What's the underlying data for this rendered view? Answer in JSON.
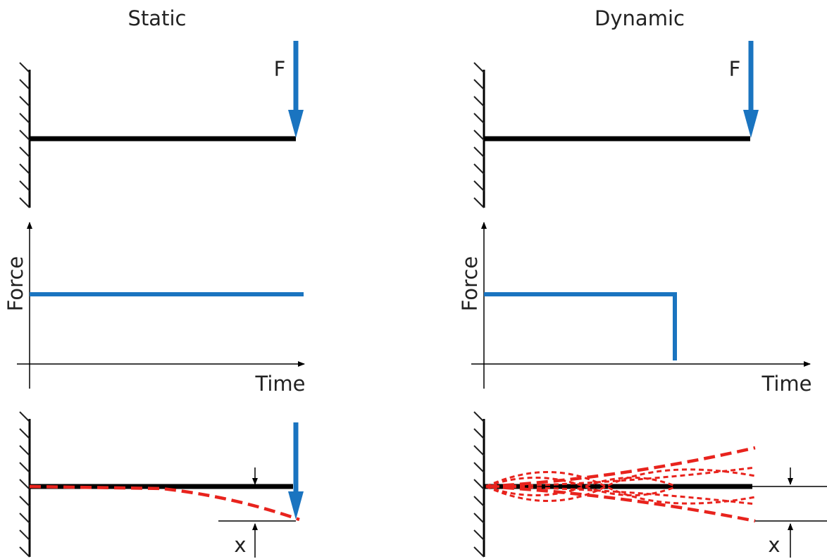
{
  "panels": [
    {
      "title": "Static",
      "force_label": "F",
      "y_axis": "Force",
      "x_axis": "Time",
      "displacement": "x"
    },
    {
      "title": "Dynamic",
      "force_label": "F",
      "y_axis": "Force",
      "x_axis": "Time",
      "displacement": "x"
    }
  ]
}
